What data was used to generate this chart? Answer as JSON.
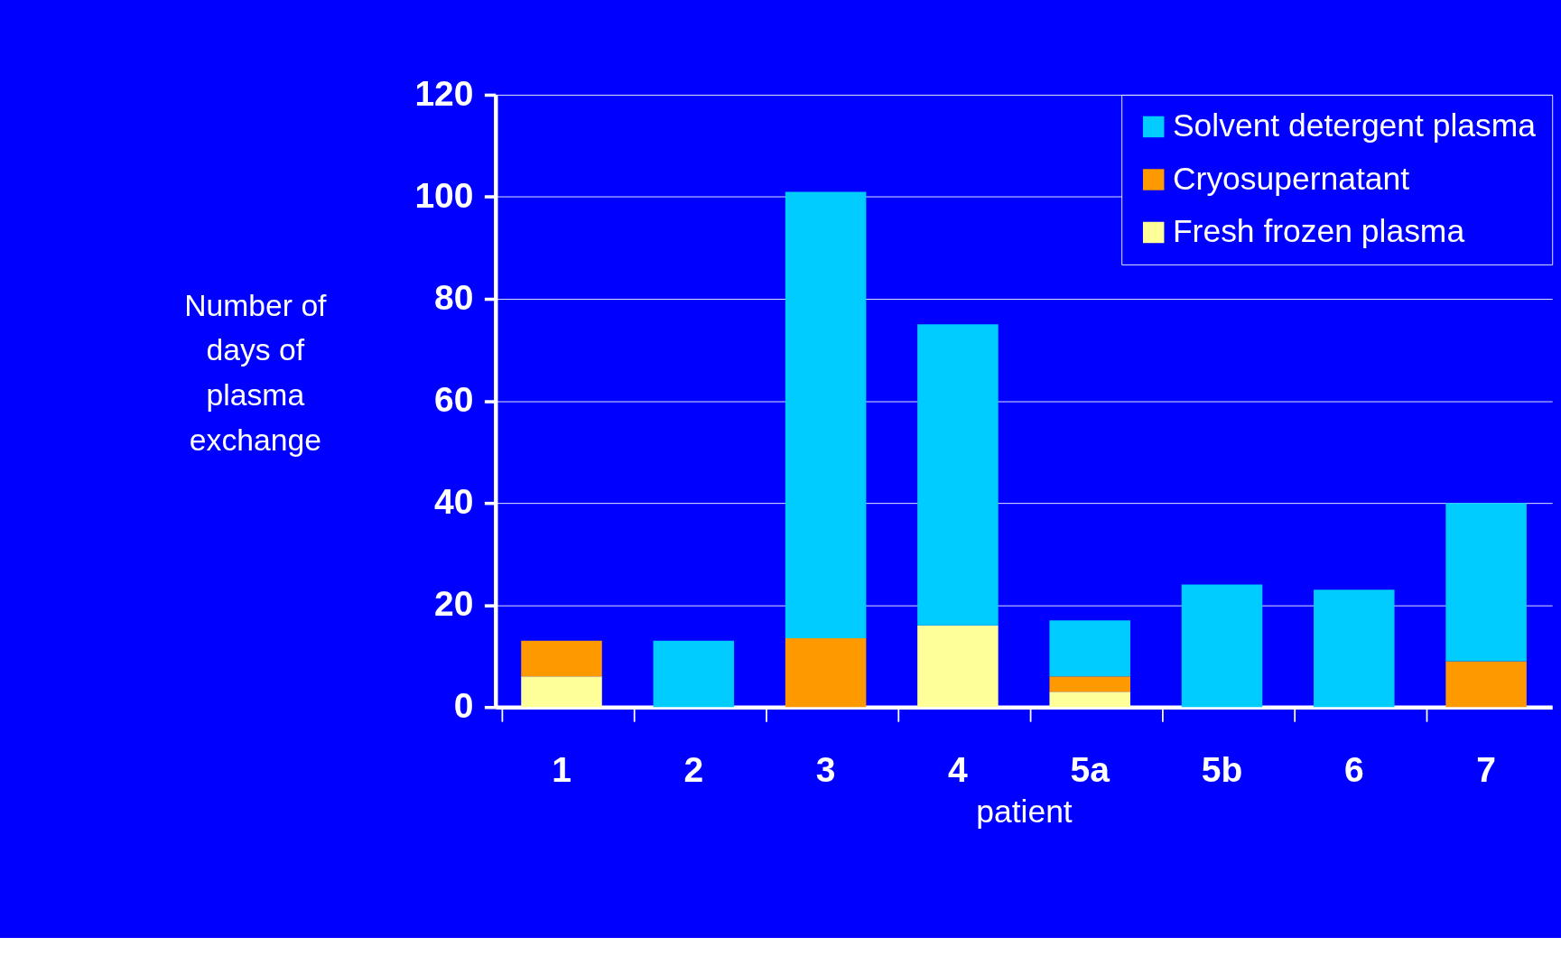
{
  "chart_data": {
    "type": "bar",
    "stacked": true,
    "xlabel": "patient",
    "ylabel": "Number of days of plasma exchange",
    "categories": [
      "1",
      "2",
      "3",
      "4",
      "5a",
      "5b",
      "6",
      "7"
    ],
    "series": [
      {
        "name": "Fresh frozen plasma",
        "color": "#ffff99",
        "values": [
          6,
          0,
          0,
          16,
          3,
          0,
          0,
          0
        ]
      },
      {
        "name": "Cryosupernatant",
        "color": "#ff9900",
        "values": [
          7,
          0,
          13.5,
          0,
          3,
          0,
          0,
          9
        ]
      },
      {
        "name": "Solvent detergent plasma",
        "color": "#00ccff",
        "values": [
          0,
          13,
          87.5,
          59,
          11,
          24,
          23,
          31
        ]
      }
    ],
    "ylim": [
      0,
      120
    ],
    "yticks": [
      0,
      20,
      40,
      60,
      80,
      100,
      120
    ],
    "grid": "y",
    "legend": "top right"
  }
}
